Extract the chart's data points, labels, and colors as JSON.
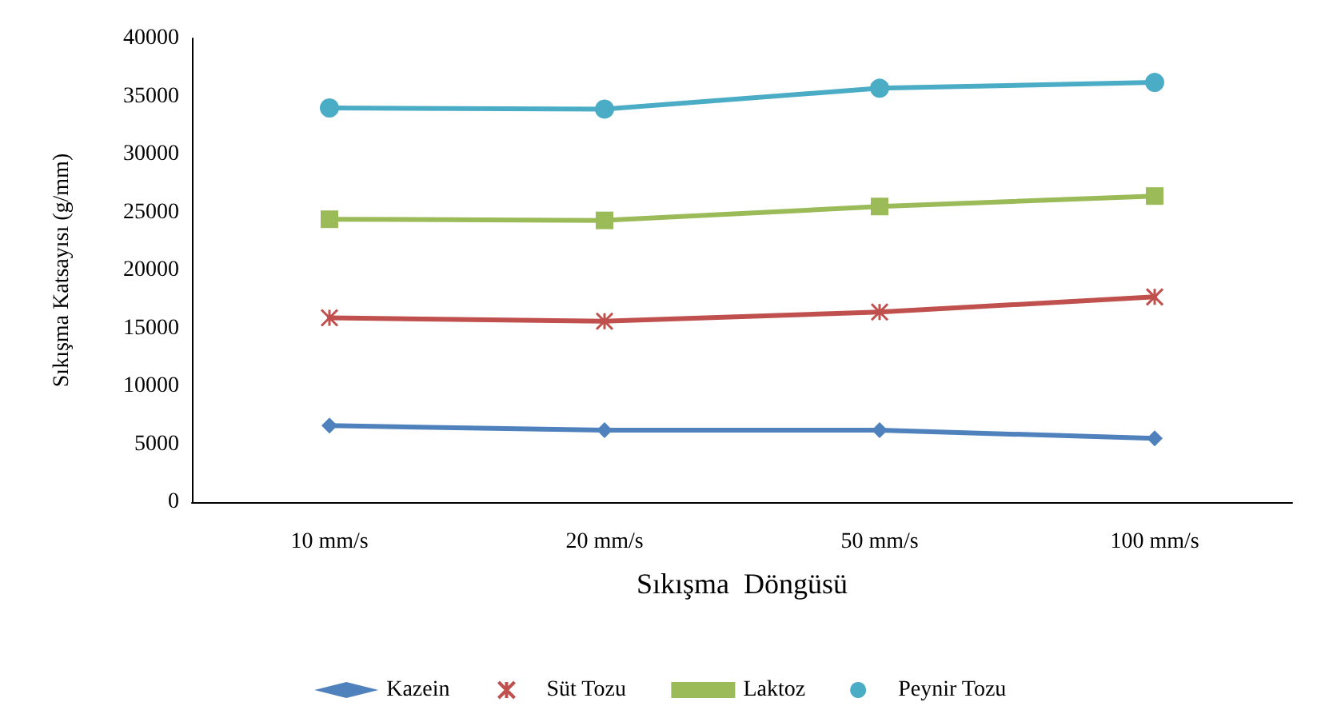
{
  "chart_data": {
    "type": "line",
    "xlabel": "Sıkışma  Döngüsü",
    "ylabel": "Sıkışma Katsayısı (g/mm)",
    "categories": [
      "10 mm/s",
      "20 mm/s",
      "50 mm/s",
      "100 mm/s"
    ],
    "series": [
      {
        "name": "Kazein",
        "color": "#4f81bd",
        "marker": "diamond",
        "values": [
          6600,
          6200,
          6200,
          5500
        ]
      },
      {
        "name": "Süt Tozu",
        "color": "#c0504d",
        "marker": "cross",
        "values": [
          15900,
          15600,
          16400,
          17700
        ]
      },
      {
        "name": "Laktoz",
        "color": "#9bbb59",
        "marker": "square",
        "values": [
          24400,
          24300,
          25500,
          26400
        ]
      },
      {
        "name": "Peynir Tozu",
        "color": "#4bacc6",
        "marker": "circle",
        "values": [
          34000,
          33900,
          35700,
          36200
        ]
      }
    ],
    "ylim": [
      0,
      40000
    ],
    "yticks": [
      0,
      5000,
      10000,
      15000,
      20000,
      25000,
      30000,
      35000,
      40000
    ],
    "grid": false,
    "legend": "bottom",
    "line_style": "solid"
  }
}
